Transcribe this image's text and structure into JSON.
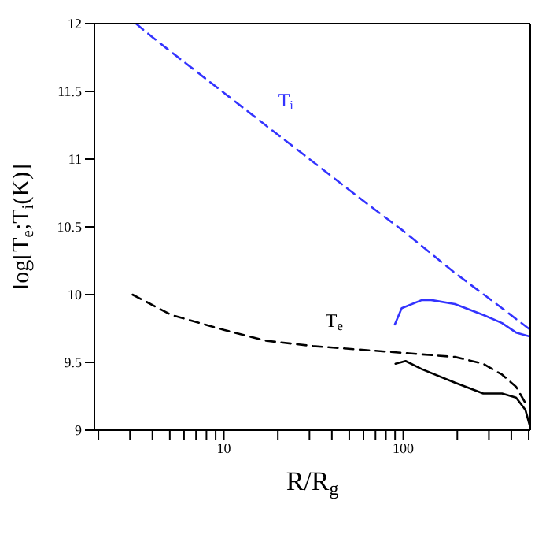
{
  "chart_data": {
    "type": "line",
    "xlabel": "R/R$_{g}$",
    "ylabel": "log[T$_{e}$;T$_{i}$(K)]",
    "log": "x",
    "xlim": [
      1.9,
      510
    ],
    "ylim": [
      9,
      12
    ],
    "xticks": [
      {
        "value": 2,
        "label": null
      },
      {
        "value": 3,
        "label": null
      },
      {
        "value": 4,
        "label": null
      },
      {
        "value": 5,
        "label": null
      },
      {
        "value": 6,
        "label": null
      },
      {
        "value": 7,
        "label": null
      },
      {
        "value": 8,
        "label": null
      },
      {
        "value": 9,
        "label": null
      },
      10,
      {
        "value": 20,
        "label": null
      },
      {
        "value": 30,
        "label": null
      },
      {
        "value": 40,
        "label": null
      },
      {
        "value": 50,
        "label": null
      },
      {
        "value": 60,
        "label": null
      },
      {
        "value": 70,
        "label": null
      },
      {
        "value": 80,
        "label": null
      },
      {
        "value": 90,
        "label": null
      },
      100,
      {
        "value": 200,
        "label": null
      },
      {
        "value": 300,
        "label": null
      },
      {
        "value": 400,
        "label": null
      },
      {
        "value": 500,
        "label": null
      }
    ],
    "yticks": [
      9,
      9.5,
      10,
      10.5,
      11,
      11.5,
      12
    ],
    "legend": false,
    "series": [
      {
        "name": "T$_{i}$",
        "color": "#3333ff",
        "line_style": "dashed",
        "x": [
          3.24,
          4.0,
          5.1,
          10,
          17.1,
          31.4,
          57.5,
          100,
          194,
          355,
          510
        ],
        "values": [
          12.0,
          11.9,
          11.79,
          11.49,
          11.25,
          10.98,
          10.71,
          10.47,
          10.16,
          9.9,
          9.74
        ]
      },
      {
        "name": "T$_{e}$",
        "color": "#000000",
        "line_style": "dashed",
        "x": [
          3.1,
          5.1,
          10,
          17.1,
          31.4,
          100,
          194,
          279,
          355,
          425,
          479
        ],
        "values": [
          10.0,
          9.85,
          9.74,
          9.66,
          9.62,
          9.57,
          9.54,
          9.49,
          9.41,
          9.32,
          9.2
        ]
      },
      {
        "color": "#3333ff",
        "line_style": "solid",
        "x": [
          89.8,
          98,
          127,
          143,
          194,
          279,
          355,
          425,
          510
        ],
        "values": [
          9.78,
          9.9,
          9.96,
          9.96,
          9.93,
          9.85,
          9.79,
          9.72,
          9.69
        ]
      },
      {
        "color": "#000000",
        "line_style": "solid",
        "x": [
          90.5,
          103,
          127,
          194,
          279,
          355,
          425,
          479,
          510
        ],
        "values": [
          9.49,
          9.51,
          9.45,
          9.35,
          9.27,
          9.27,
          9.24,
          9.15,
          9.02
        ]
      }
    ]
  }
}
